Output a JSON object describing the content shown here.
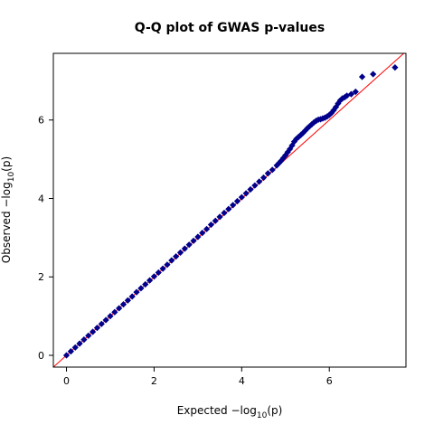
{
  "chart_data": {
    "type": "scatter",
    "title": "Q-Q plot of GWAS p-values",
    "xlabel": {
      "prefix": "Expected  ",
      "term": "−log",
      "subscript": "10",
      "arg": "(p)"
    },
    "ylabel": {
      "prefix": "Observed  ",
      "term": "−log",
      "subscript": "10",
      "arg": "(p)"
    },
    "xlim": [
      -0.3,
      7.75
    ],
    "ylim": [
      -0.3,
      7.7
    ],
    "xticks": [
      0,
      2,
      4,
      6
    ],
    "yticks": [
      0,
      2,
      4,
      6
    ],
    "grid": false,
    "legend": "none",
    "colors": {
      "points": "#00008b",
      "reference_line": "#ff0000"
    },
    "reference_line": {
      "from": [
        -0.3,
        -0.3
      ],
      "to": [
        7.75,
        7.75
      ]
    },
    "points": [
      [
        0.0,
        0.0
      ],
      [
        0.1,
        0.1
      ],
      [
        0.2,
        0.2
      ],
      [
        0.3,
        0.3
      ],
      [
        0.4,
        0.4
      ],
      [
        0.5,
        0.5
      ],
      [
        0.6,
        0.6
      ],
      [
        0.7,
        0.7
      ],
      [
        0.8,
        0.8
      ],
      [
        0.9,
        0.9
      ],
      [
        1.0,
        1.0
      ],
      [
        1.1,
        1.1
      ],
      [
        1.2,
        1.2
      ],
      [
        1.3,
        1.3
      ],
      [
        1.4,
        1.4
      ],
      [
        1.5,
        1.5
      ],
      [
        1.6,
        1.61
      ],
      [
        1.7,
        1.71
      ],
      [
        1.8,
        1.81
      ],
      [
        1.9,
        1.91
      ],
      [
        2.0,
        2.01
      ],
      [
        2.1,
        2.11
      ],
      [
        2.2,
        2.21
      ],
      [
        2.3,
        2.31
      ],
      [
        2.4,
        2.42
      ],
      [
        2.5,
        2.52
      ],
      [
        2.6,
        2.62
      ],
      [
        2.7,
        2.72
      ],
      [
        2.8,
        2.82
      ],
      [
        2.9,
        2.92
      ],
      [
        3.0,
        3.02
      ],
      [
        3.1,
        3.12
      ],
      [
        3.2,
        3.22
      ],
      [
        3.3,
        3.33
      ],
      [
        3.4,
        3.43
      ],
      [
        3.5,
        3.53
      ],
      [
        3.6,
        3.63
      ],
      [
        3.7,
        3.73
      ],
      [
        3.8,
        3.83
      ],
      [
        3.9,
        3.93
      ],
      [
        4.0,
        4.03
      ],
      [
        4.1,
        4.13
      ],
      [
        4.2,
        4.23
      ],
      [
        4.3,
        4.33
      ],
      [
        4.4,
        4.43
      ],
      [
        4.5,
        4.53
      ],
      [
        4.6,
        4.64
      ],
      [
        4.7,
        4.73
      ],
      [
        4.8,
        4.84
      ],
      [
        4.85,
        4.9
      ],
      [
        4.9,
        4.96
      ],
      [
        4.95,
        5.03
      ],
      [
        5.0,
        5.1
      ],
      [
        5.05,
        5.18
      ],
      [
        5.1,
        5.26
      ],
      [
        5.15,
        5.35
      ],
      [
        5.2,
        5.45
      ],
      [
        5.25,
        5.52
      ],
      [
        5.3,
        5.57
      ],
      [
        5.35,
        5.62
      ],
      [
        5.4,
        5.67
      ],
      [
        5.45,
        5.73
      ],
      [
        5.5,
        5.79
      ],
      [
        5.55,
        5.84
      ],
      [
        5.6,
        5.89
      ],
      [
        5.65,
        5.94
      ],
      [
        5.7,
        5.98
      ],
      [
        5.75,
        6.01
      ],
      [
        5.8,
        6.02
      ],
      [
        5.85,
        6.04
      ],
      [
        5.9,
        6.06
      ],
      [
        5.95,
        6.09
      ],
      [
        6.0,
        6.13
      ],
      [
        6.05,
        6.18
      ],
      [
        6.1,
        6.25
      ],
      [
        6.15,
        6.33
      ],
      [
        6.2,
        6.42
      ],
      [
        6.25,
        6.5
      ],
      [
        6.3,
        6.55
      ],
      [
        6.35,
        6.58
      ],
      [
        6.4,
        6.62
      ],
      [
        6.5,
        6.66
      ],
      [
        6.6,
        6.72
      ],
      [
        6.75,
        7.1
      ],
      [
        7.0,
        7.17
      ],
      [
        7.5,
        7.34
      ]
    ]
  }
}
